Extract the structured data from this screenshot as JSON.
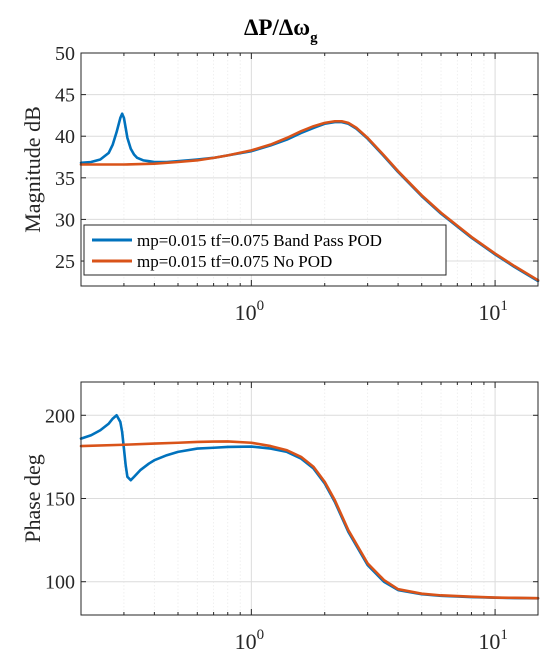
{
  "title": {
    "main": "ΔP/Δω",
    "subscript": "g"
  },
  "colors": {
    "series1": "#0072BD",
    "series2": "#D95319",
    "axis": "#262626",
    "grid_major": "#dcdcdc",
    "grid_minor": "#ececec"
  },
  "legend": {
    "location": "inside bottom-left of magnitude plot",
    "entries": [
      "mp=0.015 tf=0.075 Band Pass POD",
      "mp=0.015 tf=0.075 No POD"
    ]
  },
  "chart_data": [
    {
      "type": "line",
      "name": "magnitude",
      "title": "ΔP/Δω_g",
      "xlabel": "",
      "ylabel": "Magnitude dB",
      "xscale": "log",
      "xlim": [
        0.2,
        15
      ],
      "ylim": [
        22,
        50
      ],
      "yticks": [
        25,
        30,
        35,
        40,
        45,
        50
      ],
      "xticks": [
        1,
        10
      ],
      "xtick_labels": [
        {
          "base": "10",
          "exp": "0"
        },
        {
          "base": "10",
          "exp": "1"
        }
      ],
      "grid": true,
      "series": [
        {
          "name": "mp=0.015 tf=0.075 Band Pass POD",
          "x": [
            0.2,
            0.22,
            0.24,
            0.26,
            0.27,
            0.28,
            0.29,
            0.295,
            0.3,
            0.305,
            0.31,
            0.32,
            0.33,
            0.34,
            0.36,
            0.38,
            0.4,
            0.45,
            0.5,
            0.6,
            0.7,
            0.8,
            1.0,
            1.2,
            1.4,
            1.6,
            1.8,
            2.0,
            2.2,
            2.35,
            2.5,
            2.7,
            3.0,
            3.5,
            4.0,
            5.0,
            6.0,
            8.0,
            10.0,
            12.0,
            15.0
          ],
          "y": [
            36.8,
            36.9,
            37.2,
            38.0,
            39.0,
            40.5,
            42.2,
            42.7,
            42.2,
            41.0,
            39.8,
            38.5,
            37.8,
            37.4,
            37.1,
            37.0,
            36.9,
            36.9,
            37.0,
            37.2,
            37.4,
            37.7,
            38.2,
            38.9,
            39.6,
            40.4,
            41.0,
            41.5,
            41.7,
            41.7,
            41.5,
            40.9,
            39.7,
            37.6,
            35.7,
            32.8,
            30.7,
            27.8,
            25.8,
            24.3,
            22.6
          ]
        },
        {
          "name": "mp=0.015 tf=0.075 No POD",
          "x": [
            0.2,
            0.3,
            0.4,
            0.5,
            0.6,
            0.7,
            0.8,
            1.0,
            1.2,
            1.4,
            1.6,
            1.8,
            2.0,
            2.2,
            2.35,
            2.5,
            2.7,
            3.0,
            3.5,
            4.0,
            5.0,
            6.0,
            8.0,
            10.0,
            12.0,
            15.0
          ],
          "y": [
            36.6,
            36.6,
            36.7,
            36.9,
            37.1,
            37.4,
            37.7,
            38.3,
            39.0,
            39.8,
            40.6,
            41.2,
            41.6,
            41.8,
            41.8,
            41.6,
            41.0,
            39.8,
            37.7,
            35.8,
            32.9,
            30.8,
            27.9,
            25.9,
            24.4,
            22.7
          ]
        }
      ]
    },
    {
      "type": "line",
      "name": "phase",
      "title": "",
      "xlabel": "",
      "ylabel": "Phase deg",
      "xscale": "log",
      "xlim": [
        0.2,
        15
      ],
      "ylim": [
        80,
        220
      ],
      "yticks": [
        100,
        150,
        200
      ],
      "xticks": [
        1,
        10
      ],
      "xtick_labels": [
        {
          "base": "10",
          "exp": "0"
        },
        {
          "base": "10",
          "exp": "1"
        }
      ],
      "grid": true,
      "series": [
        {
          "name": "mp=0.015 tf=0.075 Band Pass POD",
          "x": [
            0.2,
            0.22,
            0.24,
            0.26,
            0.27,
            0.28,
            0.29,
            0.295,
            0.3,
            0.305,
            0.31,
            0.32,
            0.33,
            0.35,
            0.38,
            0.4,
            0.45,
            0.5,
            0.6,
            0.7,
            0.8,
            1.0,
            1.2,
            1.4,
            1.6,
            1.8,
            2.0,
            2.2,
            2.5,
            3.0,
            3.5,
            4.0,
            5.0,
            6.0,
            8.0,
            10.0,
            12.0,
            15.0
          ],
          "y": [
            186,
            188,
            191,
            195,
            198,
            200,
            196,
            190,
            180,
            170,
            163,
            161,
            163,
            167,
            171,
            173,
            176,
            178,
            180,
            180.5,
            181,
            181.2,
            180,
            178,
            174,
            168,
            159,
            148,
            130,
            110,
            100,
            95,
            92.5,
            91.5,
            90.8,
            90.4,
            90.2,
            90.0
          ]
        },
        {
          "name": "mp=0.015 tf=0.075 No POD",
          "x": [
            0.2,
            0.3,
            0.4,
            0.5,
            0.6,
            0.7,
            0.8,
            1.0,
            1.2,
            1.4,
            1.6,
            1.8,
            2.0,
            2.2,
            2.5,
            3.0,
            3.5,
            4.0,
            5.0,
            6.0,
            8.0,
            10.0,
            12.0,
            15.0
          ],
          "y": [
            181.5,
            182.3,
            183,
            183.5,
            184,
            184.2,
            184.3,
            183.5,
            181.5,
            179,
            175,
            169,
            160,
            149,
            131,
            111,
            101,
            95.5,
            92.8,
            91.8,
            91,
            90.5,
            90.3,
            90.1
          ]
        }
      ]
    }
  ]
}
